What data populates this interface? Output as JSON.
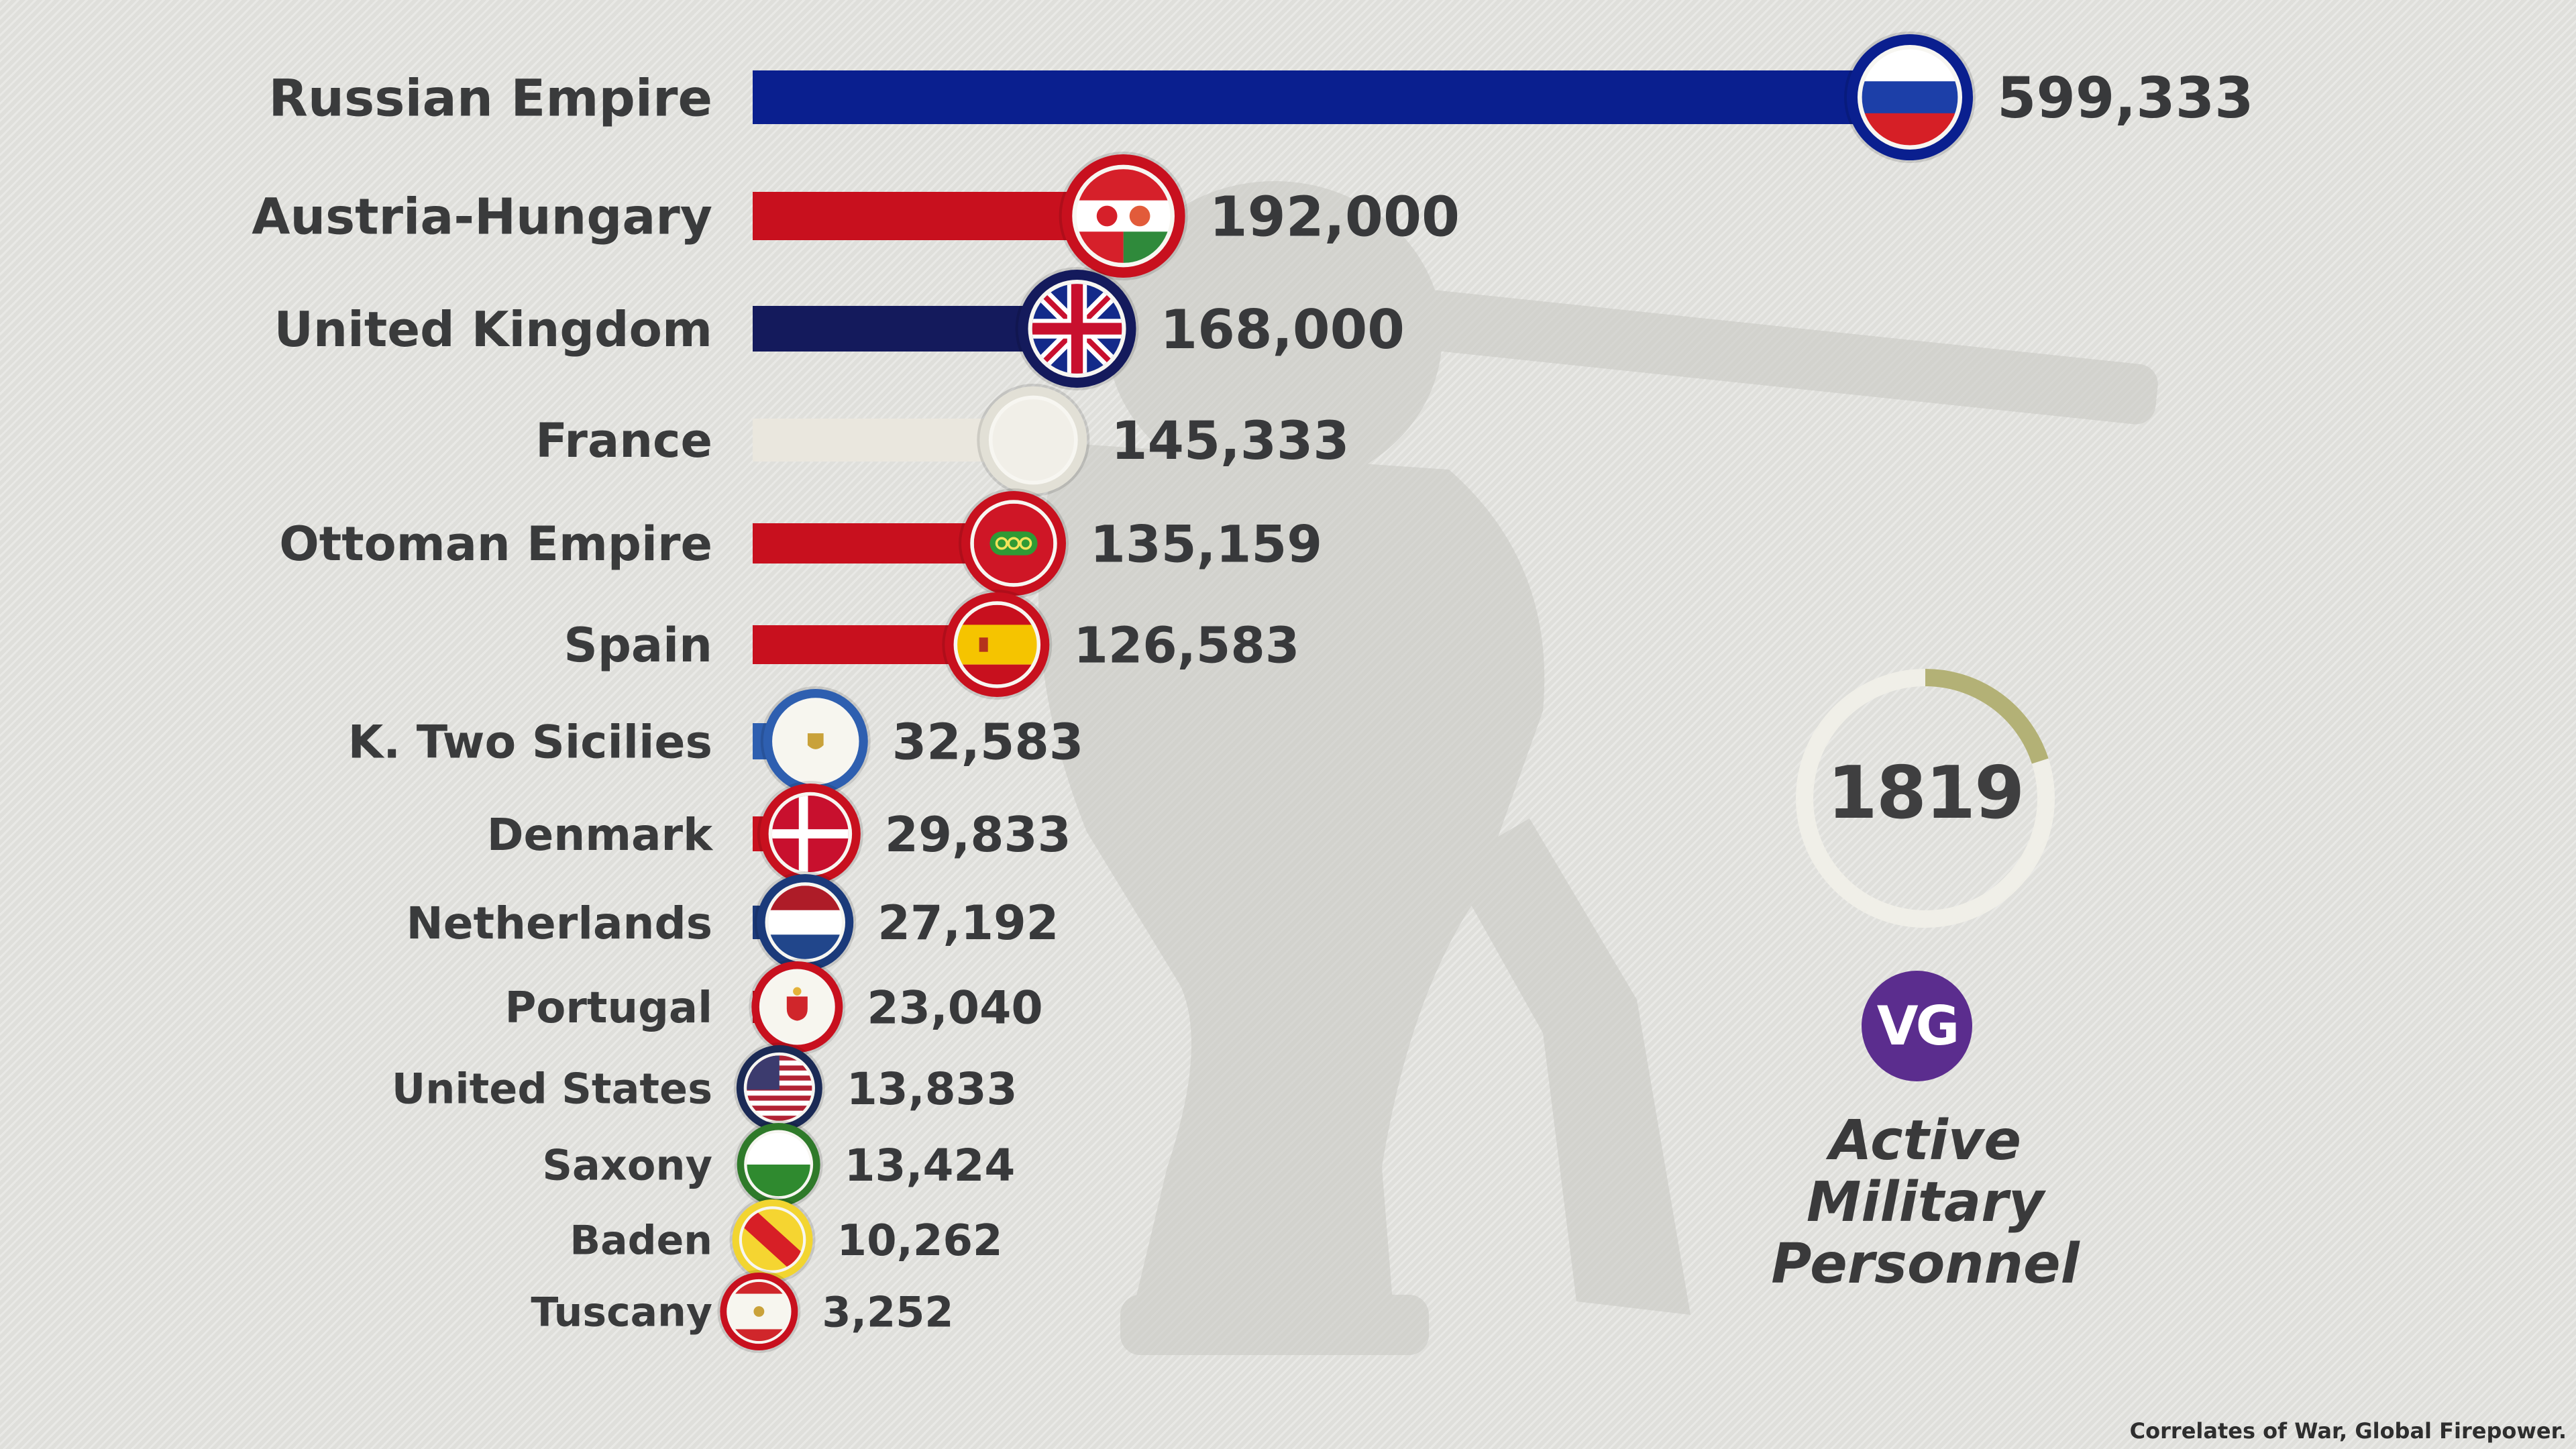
{
  "chart_data": {
    "type": "bar",
    "orientation": "horizontal",
    "categories": [
      "Russian Empire",
      "Austria-Hungary",
      "United Kingdom",
      "France",
      "Ottoman Empire",
      "Spain",
      "K. Two Sicilies",
      "Denmark",
      "Netherlands",
      "Portugal",
      "United States",
      "Saxony",
      "Baden",
      "Tuscany"
    ],
    "values": [
      599333,
      192000,
      168000,
      145333,
      135159,
      126583,
      32583,
      29833,
      27192,
      23040,
      13833,
      13424,
      10262,
      3252
    ],
    "value_labels": [
      "599,333",
      "192,000",
      "168,000",
      "145,333",
      "135,159",
      "126,583",
      "32,583",
      "29,833",
      "27,192",
      "23,040",
      "13,833",
      "13,424",
      "10,262",
      "3,252"
    ],
    "bar_colors": [
      "#0a1f8f",
      "#c8101e",
      "#141a5c",
      "#eae7de",
      "#c8101e",
      "#c8101e",
      "#2e5fb0",
      "#c8101e",
      "#1b3a7a",
      "#c8101e",
      "#1b2a55",
      "#2f7a2a",
      "#f2d530",
      "#c8101e"
    ],
    "flag_icons": [
      "russia-flag-icon",
      "austria-hungary-flag-icon",
      "united-kingdom-flag-icon",
      "france-flag-icon",
      "ottoman-empire-flag-icon",
      "spain-flag-icon",
      "two-sicilies-flag-icon",
      "denmark-flag-icon",
      "netherlands-flag-icon",
      "portugal-flag-icon",
      "united-states-flag-icon",
      "saxony-flag-icon",
      "baden-flag-icon",
      "tuscany-flag-icon"
    ],
    "year": "1819",
    "year_progress": 0.2,
    "metric_title_lines": [
      "Active",
      "Military",
      "Personnel"
    ],
    "xlabel": "",
    "ylabel": "",
    "grid": false
  },
  "logo_text": "VG",
  "source_text": "Correlates of War, Global Firepower.",
  "colors": {
    "background": "#e3e3df",
    "text": "#3a3b3c",
    "ring_track": "#f0efe8",
    "ring_progress": "#b3b176",
    "logo": "#5b2d8e"
  }
}
